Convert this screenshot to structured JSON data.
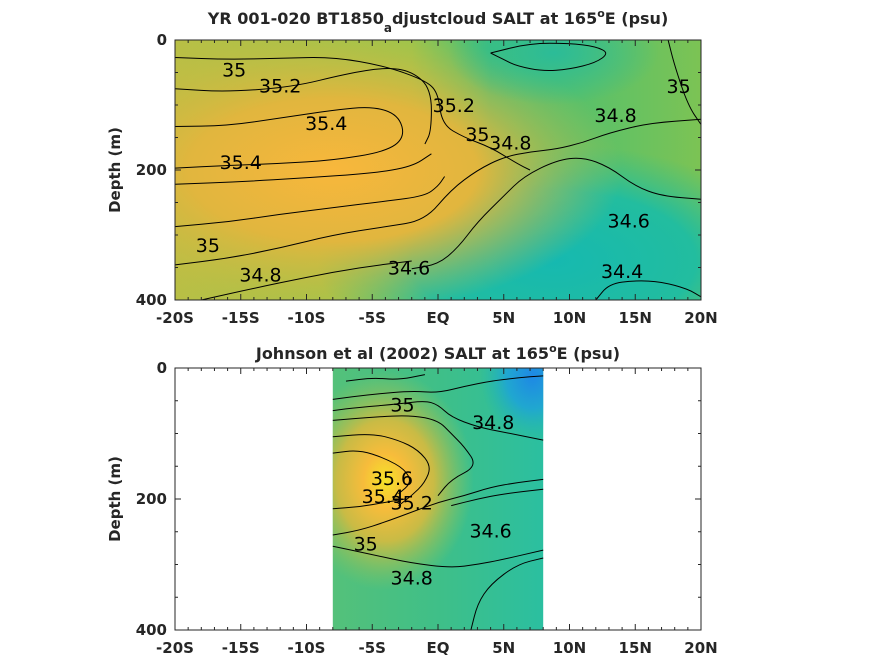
{
  "chart_data": [
    {
      "type": "heatmap",
      "title": "YR 001-020 BT1850",
      "title_sub": "a",
      "title_rest": "djustcloud SALT at 165",
      "title_sup": "o",
      "title_end": "E (psu)",
      "ylabel": "Depth (m)",
      "xlim": [
        -20,
        20
      ],
      "ylim": [
        0,
        400
      ],
      "y_reversed": true,
      "xticks": [
        -20,
        -15,
        -10,
        -5,
        0,
        5,
        10,
        15,
        20
      ],
      "xtick_labels": [
        "-20S",
        "-15S",
        "-10S",
        "-5S",
        "EQ",
        "5N",
        "10N",
        "15N",
        "20N"
      ],
      "yticks": [
        0,
        200,
        400
      ],
      "ytick_labels": [
        "0",
        "200",
        "400"
      ],
      "colormap": "parula",
      "data_x_extent": [
        -20,
        20
      ],
      "contours": [
        {
          "level": "35",
          "points": [
            [
              -20,
              27
            ],
            [
              -16,
              30
            ],
            [
              -12,
              28
            ],
            [
              -8,
              26
            ],
            [
              -4,
              40
            ],
            [
              -1,
              62
            ],
            [
              0,
              80
            ],
            [
              0.3,
              130
            ],
            [
              2,
              150
            ],
            [
              4,
              165
            ],
            [
              6,
              190
            ],
            [
              7,
              200
            ]
          ]
        },
        {
          "level": "35.2",
          "points": [
            [
              -20,
              75
            ],
            [
              -16,
              80
            ],
            [
              -11,
              72
            ],
            [
              -7,
              52
            ],
            [
              -4,
              42
            ],
            [
              -2,
              48
            ],
            [
              -0.5,
              75
            ],
            [
              -0.5,
              140
            ],
            [
              -1,
              160
            ]
          ]
        },
        {
          "level": "35.4",
          "points": [
            [
              -20,
              133
            ],
            [
              -16,
              132
            ],
            [
              -12,
              120
            ],
            [
              -8,
              108
            ],
            [
              -5,
              102
            ],
            [
              -3,
              115
            ],
            [
              -2.5,
              150
            ],
            [
              -4,
              172
            ],
            [
              -8,
              185
            ],
            [
              -12,
              190
            ],
            [
              -16,
              193
            ],
            [
              -20,
              197
            ]
          ]
        },
        {
          "level": "35.2",
          "points": [
            [
              -20,
              222
            ],
            [
              -15,
              218
            ],
            [
              -10,
              212
            ],
            [
              -5,
              205
            ],
            [
              -2,
              195
            ],
            [
              -0.5,
              175
            ]
          ]
        },
        {
          "level": "35",
          "points": [
            [
              -20,
              287
            ],
            [
              -16,
              280
            ],
            [
              -12,
              268
            ],
            [
              -8,
              258
            ],
            [
              -4,
              248
            ],
            [
              -1,
              240
            ],
            [
              0,
              225
            ],
            [
              0.5,
              210
            ]
          ]
        },
        {
          "level": "34.8",
          "points": [
            [
              -20,
              346
            ],
            [
              -16,
              336
            ],
            [
              -12,
              320
            ],
            [
              -8,
              300
            ],
            [
              -4,
              287
            ],
            [
              -1,
              278
            ],
            [
              1,
              230
            ],
            [
              3,
              200
            ],
            [
              5,
              180
            ],
            [
              7,
              172
            ],
            [
              9,
              168
            ],
            [
              11,
              158
            ],
            [
              13,
              143
            ],
            [
              16,
              128
            ],
            [
              20,
              122
            ]
          ]
        },
        {
          "level": "34.8",
          "points": [
            [
              -18,
              400
            ],
            [
              -14,
              382
            ],
            [
              -10,
              365
            ],
            [
              -6,
              350
            ],
            [
              -2,
              340
            ]
          ]
        },
        {
          "level": "34.6",
          "points": [
            [
              -2,
              352
            ],
            [
              0,
              345
            ],
            [
              1.5,
              320
            ],
            [
              3,
              280
            ],
            [
              5,
              240
            ],
            [
              6.5,
              210
            ],
            [
              9,
              185
            ],
            [
              11,
              180
            ],
            [
              13,
              195
            ],
            [
              15,
              225
            ],
            [
              17,
              240
            ],
            [
              20,
              245
            ]
          ]
        },
        {
          "level": "34.4",
          "points": [
            [
              12,
              400
            ],
            [
              13,
              375
            ],
            [
              15,
              370
            ],
            [
              17,
              372
            ],
            [
              19,
              383
            ],
            [
              20,
              395
            ]
          ]
        },
        {
          "level": "34.6",
          "points": [
            [
              4,
              20
            ],
            [
              5,
              30
            ],
            [
              6,
              40
            ],
            [
              8,
              48
            ],
            [
              10,
              45
            ],
            [
              12,
              35
            ],
            [
              13,
              20
            ],
            [
              12,
              10
            ],
            [
              10,
              5
            ],
            [
              7,
              5
            ],
            [
              4,
              20
            ]
          ]
        },
        {
          "level": "35",
          "points": [
            [
              17.5,
              0
            ],
            [
              18,
              40
            ],
            [
              19,
              100
            ],
            [
              20,
              130
            ]
          ]
        }
      ],
      "contour_labels": [
        {
          "text": "35",
          "x": -15.5,
          "y": 48
        },
        {
          "text": "35.2",
          "x": -12,
          "y": 72
        },
        {
          "text": "35.4",
          "x": -8.5,
          "y": 130
        },
        {
          "text": "35.4",
          "x": -15,
          "y": 190
        },
        {
          "text": "35.2",
          "x": 1.2,
          "y": 102
        },
        {
          "text": "35",
          "x": 3,
          "y": 147
        },
        {
          "text": "34.8",
          "x": 5.5,
          "y": 160
        },
        {
          "text": "34.8",
          "x": 13.5,
          "y": 118
        },
        {
          "text": "35",
          "x": 18.3,
          "y": 73
        },
        {
          "text": "34.6",
          "x": 14.5,
          "y": 280
        },
        {
          "text": "34.6",
          "x": -2.2,
          "y": 352
        },
        {
          "text": "35",
          "x": -17.5,
          "y": 318
        },
        {
          "text": "34.8",
          "x": -13.5,
          "y": 363
        },
        {
          "text": "34.4",
          "x": 14,
          "y": 358
        }
      ]
    },
    {
      "type": "heatmap",
      "title": "Johnson et al (2002) SALT at 165",
      "title_sup": "o",
      "title_end": "E (psu)",
      "ylabel": "Depth (m)",
      "xlim": [
        -20,
        20
      ],
      "ylim": [
        0,
        400
      ],
      "y_reversed": true,
      "xticks": [
        -20,
        -15,
        -10,
        -5,
        0,
        5,
        10,
        15,
        20
      ],
      "xtick_labels": [
        "-20S",
        "-15S",
        "-10S",
        "-5S",
        "EQ",
        "5N",
        "10N",
        "15N",
        "20N"
      ],
      "yticks": [
        0,
        200,
        400
      ],
      "ytick_labels": [
        "0",
        "200",
        "400"
      ],
      "colormap": "parula",
      "data_x_extent": [
        -8,
        8
      ],
      "contours": [
        {
          "level": "34.6",
          "points": [
            [
              -7,
              20
            ],
            [
              -5,
              15
            ],
            [
              -3,
              18
            ],
            [
              -1,
              10
            ]
          ]
        },
        {
          "level": "34.8",
          "points": [
            [
              -8,
              48
            ],
            [
              -5,
              40
            ],
            [
              -2,
              35
            ],
            [
              0,
              38
            ],
            [
              2,
              28
            ],
            [
              4,
              20
            ],
            [
              6,
              15
            ],
            [
              8,
              12
            ]
          ]
        },
        {
          "level": "35",
          "points": [
            [
              -8,
              65
            ],
            [
              -6,
              60
            ],
            [
              -3,
              55
            ],
            [
              -1,
              50
            ],
            [
              0,
              56
            ],
            [
              1,
              75
            ],
            [
              3,
              90
            ],
            [
              5,
              98
            ],
            [
              8,
              110
            ]
          ]
        },
        {
          "level": "35.2",
          "points": [
            [
              -8,
              80
            ],
            [
              -5,
              75
            ],
            [
              -2,
              72
            ],
            [
              0,
              80
            ],
            [
              1,
              100
            ],
            [
              2,
              120
            ],
            [
              3,
              150
            ],
            [
              1,
              170
            ],
            [
              0,
              195
            ]
          ]
        },
        {
          "level": "35.4",
          "points": [
            [
              -8,
              105
            ],
            [
              -5,
              100
            ],
            [
              -3,
              110
            ],
            [
              -1.5,
              125
            ],
            [
              -0.5,
              150
            ],
            [
              -1,
              175
            ],
            [
              -2,
              195
            ],
            [
              -3,
              210
            ]
          ]
        },
        {
          "level": "35.6",
          "points": [
            [
              -8,
              130
            ],
            [
              -6,
              125
            ],
            [
              -4,
              138
            ],
            [
              -2.5,
              155
            ],
            [
              -2,
              175
            ],
            [
              -3,
              192
            ]
          ]
        },
        {
          "level": "35.4",
          "points": [
            [
              -8,
              215
            ],
            [
              -6,
              212
            ],
            [
              -4,
              205
            ],
            [
              -2.5,
              200
            ]
          ]
        },
        {
          "level": "35",
          "points": [
            [
              -8,
              255
            ],
            [
              -6,
              248
            ],
            [
              -4,
              235
            ],
            [
              -2,
              220
            ],
            [
              0,
              205
            ],
            [
              2,
              195
            ],
            [
              4,
              182
            ],
            [
              6,
              175
            ],
            [
              8,
              170
            ]
          ]
        },
        {
          "level": "34.8",
          "points": [
            [
              -8,
              272
            ],
            [
              -5,
              285
            ],
            [
              -2,
              298
            ],
            [
              1,
              305
            ],
            [
              3,
              300
            ],
            [
              5,
              292
            ],
            [
              8,
              278
            ]
          ]
        },
        {
          "level": "34.6",
          "points": [
            [
              1,
              210
            ],
            [
              3,
              200
            ],
            [
              5,
              192
            ],
            [
              8,
              185
            ]
          ]
        },
        {
          "level": "34.6",
          "points": [
            [
              2.5,
              400
            ],
            [
              3,
              360
            ],
            [
              4,
              330
            ],
            [
              6,
              300
            ],
            [
              8,
              290
            ]
          ]
        }
      ],
      "contour_labels": [
        {
          "text": "35",
          "x": -2.7,
          "y": 58
        },
        {
          "text": "34.8",
          "x": 4.2,
          "y": 85
        },
        {
          "text": "35.6",
          "x": -3.5,
          "y": 170
        },
        {
          "text": "35.4",
          "x": -4.2,
          "y": 198
        },
        {
          "text": "35.2",
          "x": -2,
          "y": 208
        },
        {
          "text": "35",
          "x": -5.5,
          "y": 270
        },
        {
          "text": "34.6",
          "x": 4,
          "y": 250
        },
        {
          "text": "34.8",
          "x": -2,
          "y": 322
        }
      ]
    }
  ]
}
